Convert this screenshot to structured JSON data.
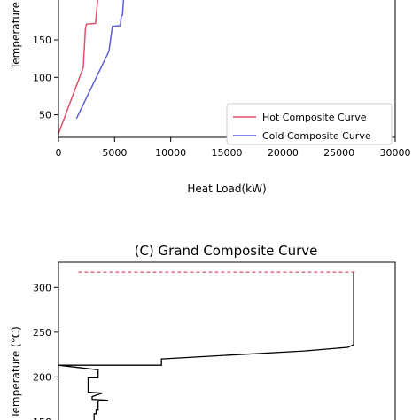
{
  "chart_data": [
    {
      "type": "line",
      "title": "",
      "xlabel": "Heat Load(kW)",
      "ylabel": "Temperature",
      "xlim": [
        0,
        30000
      ],
      "ylim": [
        20,
        215
      ],
      "xticks": [
        "0",
        "5000",
        "10000",
        "15000",
        "20000",
        "25000",
        "30000"
      ],
      "yticks": [
        "50",
        "100",
        "150"
      ],
      "legend_position": "bottom-right",
      "series": [
        {
          "name": "Hot Composite Curve",
          "color": "#e0506a",
          "x": [
            0,
            2200,
            2400,
            2500,
            3300,
            3500
          ],
          "y": [
            25,
            113,
            165,
            171,
            172,
            205
          ]
        },
        {
          "name": "Cold Composite Curve",
          "color": "#5b5fd6",
          "x": [
            1600,
            4500,
            4800,
            5500,
            5600,
            5700,
            5800
          ],
          "y": [
            45,
            135,
            168,
            169,
            182,
            183,
            205
          ]
        }
      ]
    },
    {
      "type": "line",
      "title": "(C) Grand Composite Curve",
      "xlabel": "",
      "ylabel": "Temperature (°C)",
      "xlim": [
        0,
        17000
      ],
      "ylim": [
        140,
        328
      ],
      "yticks": [
        "150",
        "200",
        "250",
        "300"
      ],
      "series": [
        {
          "name": "",
          "color": "#000000",
          "x": [
            14900,
            14900,
            14600,
            12400,
            6000,
            5200,
            5200,
            0,
            2000,
            2000,
            1500,
            1500,
            2200,
            1700,
            1700,
            2500,
            2000,
            2000,
            1900,
            1900,
            1800,
            1800
          ],
          "y": [
            317,
            236,
            233,
            229,
            221,
            220,
            213,
            213,
            208,
            199,
            199,
            183,
            182,
            178,
            175,
            174,
            173,
            163,
            163,
            159,
            159,
            140
          ]
        },
        {
          "name": "",
          "color": "#e0506a",
          "style": "dashed",
          "x": [
            1000,
            15000
          ],
          "y": [
            317,
            317
          ]
        }
      ]
    }
  ]
}
